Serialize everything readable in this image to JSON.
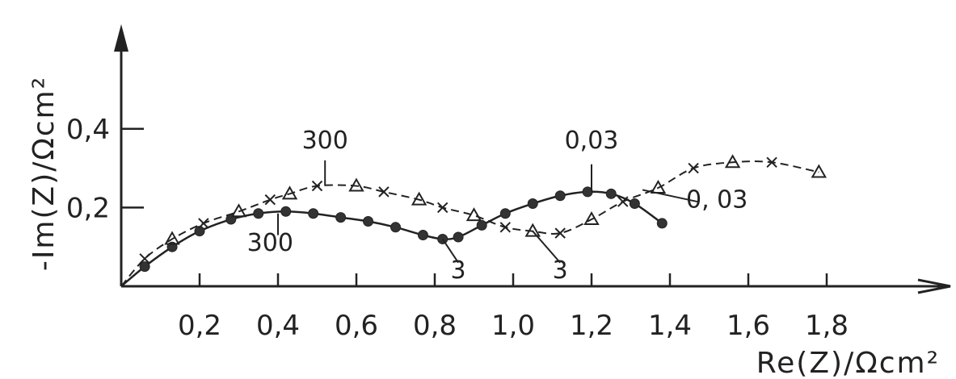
{
  "chart_data": {
    "type": "scatter",
    "xlabel": "Re(Z)/Ωcm²",
    "ylabel": "-Im(Z)/Ωcm²",
    "xlim": [
      0,
      2.1
    ],
    "ylim": [
      0,
      0.66
    ],
    "x_ticks": [
      0.2,
      0.4,
      0.6,
      0.8,
      1.0,
      1.2,
      1.4,
      1.6,
      1.8
    ],
    "x_tick_labels": [
      "0,2",
      "0,4",
      "0,6",
      "0,8",
      "1,0",
      "1,2",
      "1,4",
      "1,6",
      "1,8"
    ],
    "y_ticks": [
      0.2,
      0.4
    ],
    "y_tick_labels": [
      "0,2",
      "0,4"
    ],
    "grid": false,
    "series": [
      {
        "marker": "filled-circle",
        "x": [
          0.0,
          0.06,
          0.13,
          0.2,
          0.28,
          0.35,
          0.42,
          0.49,
          0.56,
          0.63,
          0.7,
          0.77,
          0.82,
          0.86,
          0.92,
          0.98,
          1.05,
          1.12,
          1.19,
          1.25,
          1.31,
          1.38
        ],
        "y": [
          0.0,
          0.05,
          0.1,
          0.14,
          0.17,
          0.185,
          0.19,
          0.185,
          0.175,
          0.165,
          0.15,
          0.13,
          0.12,
          0.125,
          0.155,
          0.185,
          0.21,
          0.23,
          0.24,
          0.235,
          0.21,
          0.16
        ]
      },
      {
        "marker": "open-triangle",
        "x": [
          0.0,
          0.06,
          0.13,
          0.21,
          0.3,
          0.38,
          0.43,
          0.5,
          0.6,
          0.67,
          0.76,
          0.82,
          0.9,
          0.98,
          1.05,
          1.12,
          1.2,
          1.28,
          1.37,
          1.46,
          1.56,
          1.66,
          1.78
        ],
        "y": [
          0.0,
          0.07,
          0.12,
          0.16,
          0.19,
          0.22,
          0.235,
          0.255,
          0.255,
          0.24,
          0.22,
          0.2,
          0.18,
          0.15,
          0.14,
          0.135,
          0.17,
          0.215,
          0.25,
          0.3,
          0.315,
          0.315,
          0.29
        ]
      }
    ],
    "annotations": [
      {
        "text": "300",
        "x": 0.52,
        "y": 0.35
      },
      {
        "text": "300",
        "x": 0.38,
        "y": 0.09
      },
      {
        "text": "3",
        "x": 0.86,
        "y": 0.02
      },
      {
        "text": "3",
        "x": 1.12,
        "y": 0.02
      },
      {
        "text": "0,03",
        "x": 1.2,
        "y": 0.35
      },
      {
        "text": "0, 03",
        "x": 1.52,
        "y": 0.2
      }
    ]
  }
}
